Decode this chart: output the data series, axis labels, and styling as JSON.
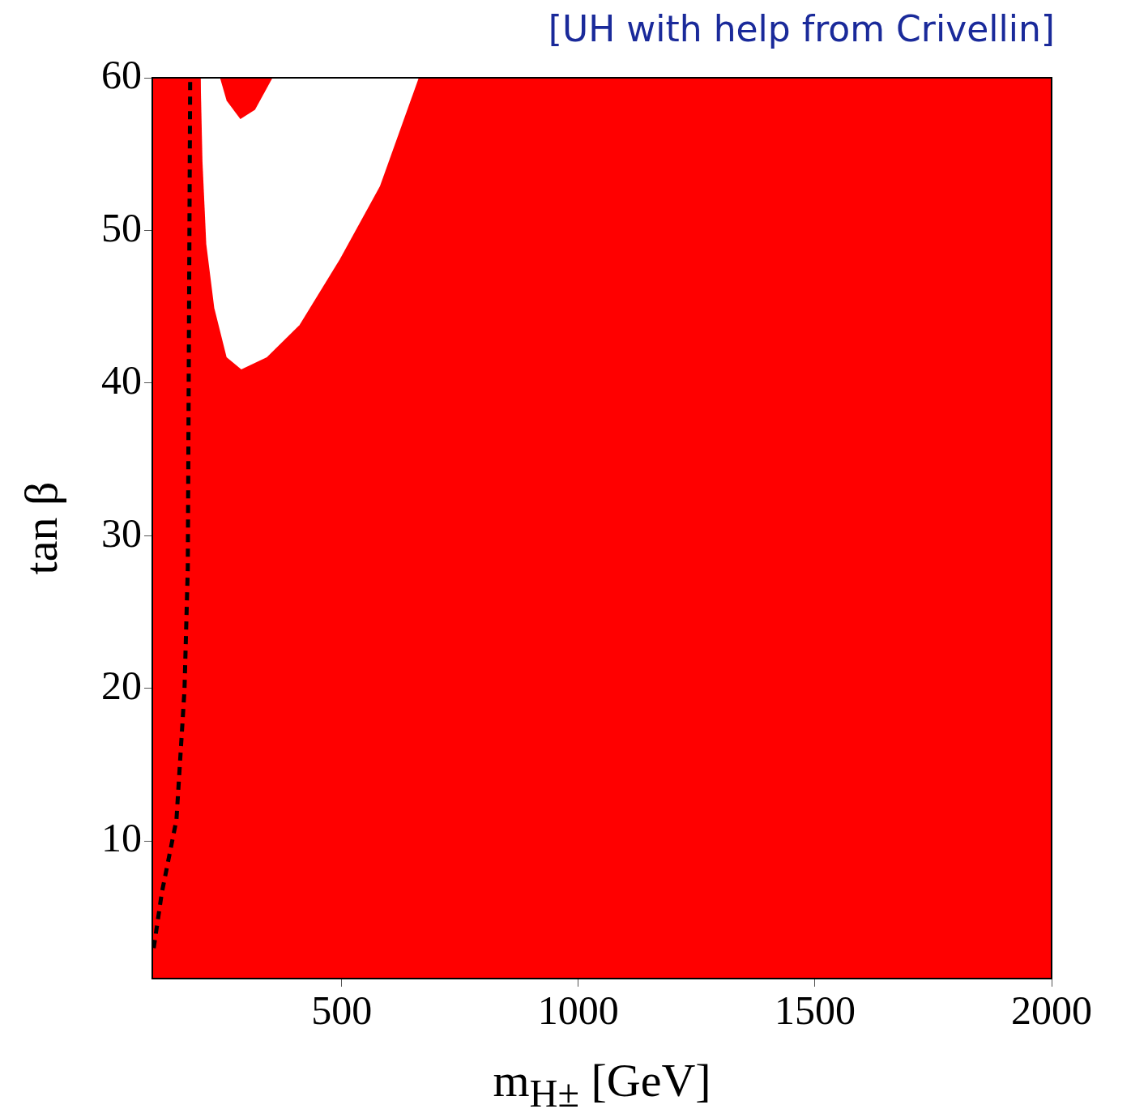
{
  "chart_data": {
    "type": "area",
    "xlabel": "m$_{H±}$ [GeV]",
    "ylabel": "tan β",
    "annotations": [
      "[UH with help from Crivellin]"
    ],
    "xlim": [
      100,
      2000
    ],
    "xticks": [
      500,
      1000,
      1500,
      2000
    ],
    "ylim": [
      1,
      60
    ],
    "yticks": [
      10,
      20,
      30,
      40,
      50,
      60
    ],
    "bands": [
      {
        "axis": "y",
        "from": 1,
        "to": 60,
        "color": "#ff0000"
      }
    ],
    "series": [
      {
        "color": "#ffffff",
        "x": [
          202,
          206,
          214,
          231,
          257,
          288,
          342,
          411,
          496,
          581,
          663
        ],
        "values": [
          60,
          54.5,
          49.1,
          44.9,
          41.7,
          40.9,
          41.7,
          43.8,
          48.1,
          52.9,
          60
        ]
      },
      {
        "color": "#ff0000",
        "x": [
          243,
          257,
          286,
          317,
          354
        ],
        "values": [
          60,
          58.5,
          57.3,
          57.9,
          60
        ]
      },
      {
        "type": "line",
        "color": "#000000",
        "line_style": "dashed",
        "x": [
          103,
          120,
          151,
          168,
          175,
          180
        ],
        "values": [
          3,
          6.6,
          11.4,
          19.9,
          27.9,
          60
        ]
      }
    ]
  }
}
